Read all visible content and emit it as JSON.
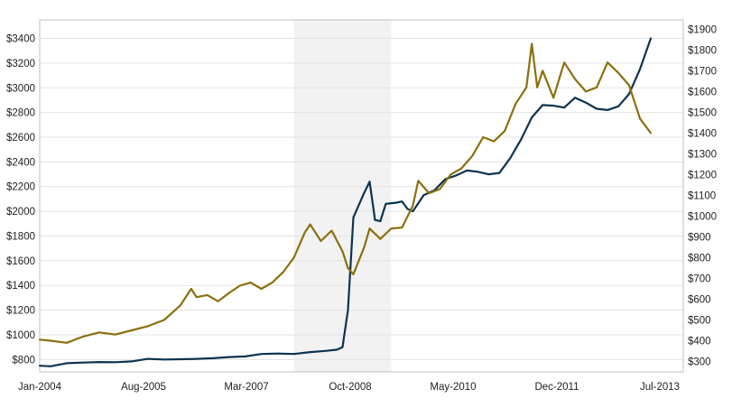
{
  "chart_data": {
    "type": "line",
    "title": "",
    "xlabel": "",
    "ylabel": "",
    "x_ticks": [
      "Jan-2004",
      "Aug-2005",
      "Mar-2007",
      "Oct-2008",
      "May-2010",
      "Dec-2011",
      "Jul-2013"
    ],
    "x_range": [
      "2004-01",
      "2013-06"
    ],
    "y_left": {
      "ylim": [
        700,
        3550
      ],
      "ticks": [
        800,
        1000,
        1200,
        1400,
        1600,
        1800,
        2000,
        2200,
        2400,
        2600,
        2800,
        3000,
        3200,
        3400
      ],
      "tick_labels": [
        "$800",
        "$1000",
        "$1200",
        "$1400",
        "$1600",
        "$1800",
        "$2000",
        "$2200",
        "$2400",
        "$2600",
        "$2800",
        "$3000",
        "$3200",
        "$3400"
      ]
    },
    "y_right": {
      "ylim": [
        250,
        1945
      ],
      "ticks": [
        300,
        400,
        500,
        600,
        700,
        800,
        900,
        1000,
        1100,
        1200,
        1300,
        1400,
        1500,
        1600,
        1700,
        1800,
        1900
      ],
      "tick_labels": [
        "$300",
        "$400",
        "$500",
        "$600",
        "$700",
        "$800",
        "$900",
        "$1000",
        "$1100",
        "$1200",
        "$1300",
        "$1400",
        "$1500",
        "$1600",
        "$1700",
        "$1800",
        "$1900"
      ]
    },
    "shaded_region": {
      "from": "2007-12",
      "to": "2009-06",
      "color": "#f2f2f2"
    },
    "grid": true,
    "series": [
      {
        "axis": "left",
        "color": "#0c3350",
        "points": [
          [
            "2004-01",
            750
          ],
          [
            "2004-03",
            745
          ],
          [
            "2004-06",
            770
          ],
          [
            "2004-09",
            775
          ],
          [
            "2004-12",
            780
          ],
          [
            "2005-03",
            778
          ],
          [
            "2005-06",
            785
          ],
          [
            "2005-09",
            805
          ],
          [
            "2005-12",
            800
          ],
          [
            "2006-03",
            802
          ],
          [
            "2006-06",
            805
          ],
          [
            "2006-09",
            810
          ],
          [
            "2006-12",
            820
          ],
          [
            "2007-03",
            825
          ],
          [
            "2007-06",
            845
          ],
          [
            "2007-09",
            848
          ],
          [
            "2007-12",
            845
          ],
          [
            "2008-03",
            860
          ],
          [
            "2008-06",
            870
          ],
          [
            "2008-08",
            880
          ],
          [
            "2008-09",
            900
          ],
          [
            "2008-10",
            1200
          ],
          [
            "2008-11",
            1950
          ],
          [
            "2009-01",
            2150
          ],
          [
            "2009-02",
            2240
          ],
          [
            "2009-03",
            1930
          ],
          [
            "2009-04",
            1920
          ],
          [
            "2009-05",
            2060
          ],
          [
            "2009-07",
            2070
          ],
          [
            "2009-08",
            2080
          ],
          [
            "2009-09",
            2020
          ],
          [
            "2009-10",
            2000
          ],
          [
            "2009-12",
            2130
          ],
          [
            "2010-02",
            2170
          ],
          [
            "2010-04",
            2260
          ],
          [
            "2010-06",
            2290
          ],
          [
            "2010-08",
            2330
          ],
          [
            "2010-10",
            2320
          ],
          [
            "2010-12",
            2300
          ],
          [
            "2011-02",
            2310
          ],
          [
            "2011-04",
            2430
          ],
          [
            "2011-06",
            2580
          ],
          [
            "2011-08",
            2760
          ],
          [
            "2011-10",
            2860
          ],
          [
            "2011-12",
            2855
          ],
          [
            "2012-02",
            2840
          ],
          [
            "2012-04",
            2920
          ],
          [
            "2012-06",
            2880
          ],
          [
            "2012-08",
            2830
          ],
          [
            "2012-10",
            2820
          ],
          [
            "2012-12",
            2850
          ],
          [
            "2013-02",
            2950
          ],
          [
            "2013-04",
            3150
          ],
          [
            "2013-06",
            3400
          ]
        ]
      },
      {
        "axis": "right",
        "color": "#8b6f0e",
        "points": [
          [
            "2004-01",
            405
          ],
          [
            "2004-03",
            400
          ],
          [
            "2004-06",
            390
          ],
          [
            "2004-09",
            420
          ],
          [
            "2004-12",
            440
          ],
          [
            "2005-03",
            430
          ],
          [
            "2005-06",
            450
          ],
          [
            "2005-09",
            470
          ],
          [
            "2005-12",
            500
          ],
          [
            "2006-03",
            570
          ],
          [
            "2006-05",
            650
          ],
          [
            "2006-06",
            610
          ],
          [
            "2006-08",
            620
          ],
          [
            "2006-10",
            590
          ],
          [
            "2006-12",
            630
          ],
          [
            "2007-02",
            665
          ],
          [
            "2007-04",
            680
          ],
          [
            "2007-06",
            650
          ],
          [
            "2007-08",
            680
          ],
          [
            "2007-10",
            730
          ],
          [
            "2007-12",
            800
          ],
          [
            "2008-02",
            920
          ],
          [
            "2008-03",
            960
          ],
          [
            "2008-05",
            880
          ],
          [
            "2008-07",
            930
          ],
          [
            "2008-09",
            830
          ],
          [
            "2008-10",
            750
          ],
          [
            "2008-11",
            720
          ],
          [
            "2009-01",
            850
          ],
          [
            "2009-02",
            940
          ],
          [
            "2009-04",
            890
          ],
          [
            "2009-06",
            940
          ],
          [
            "2009-08",
            945
          ],
          [
            "2009-10",
            1050
          ],
          [
            "2009-11",
            1170
          ],
          [
            "2010-01",
            1110
          ],
          [
            "2010-03",
            1130
          ],
          [
            "2010-05",
            1200
          ],
          [
            "2010-07",
            1230
          ],
          [
            "2010-09",
            1290
          ],
          [
            "2010-11",
            1380
          ],
          [
            "2011-01",
            1360
          ],
          [
            "2011-03",
            1410
          ],
          [
            "2011-05",
            1540
          ],
          [
            "2011-07",
            1620
          ],
          [
            "2011-08",
            1830
          ],
          [
            "2011-09",
            1620
          ],
          [
            "2011-10",
            1700
          ],
          [
            "2011-12",
            1570
          ],
          [
            "2012-02",
            1740
          ],
          [
            "2012-04",
            1660
          ],
          [
            "2012-06",
            1600
          ],
          [
            "2012-08",
            1620
          ],
          [
            "2012-10",
            1740
          ],
          [
            "2012-12",
            1690
          ],
          [
            "2013-02",
            1630
          ],
          [
            "2013-04",
            1470
          ],
          [
            "2013-06",
            1400
          ]
        ]
      }
    ]
  }
}
